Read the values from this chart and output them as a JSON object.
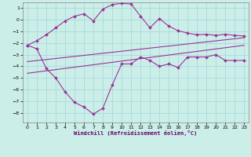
{
  "xlabel": "Windchill (Refroidissement éolien,°C)",
  "bg_color": "#cceee8",
  "grid_color": "#aadddd",
  "line_color": "#993399",
  "xlim": [
    -0.5,
    23.5
  ],
  "ylim": [
    -8.8,
    1.5
  ],
  "xticks": [
    0,
    1,
    2,
    3,
    4,
    5,
    6,
    7,
    8,
    9,
    10,
    11,
    12,
    13,
    14,
    15,
    16,
    17,
    18,
    19,
    20,
    21,
    22,
    23
  ],
  "yticks": [
    -8,
    -7,
    -6,
    -5,
    -4,
    -3,
    -2,
    -1,
    0,
    1
  ],
  "curve_up_x": [
    0,
    1,
    2,
    3,
    4,
    5,
    6,
    7,
    8,
    9,
    10,
    11,
    12,
    13,
    14,
    15,
    16,
    17,
    18,
    19,
    20,
    21,
    22,
    23
  ],
  "curve_up_y": [
    -2.2,
    -1.8,
    -1.3,
    -0.7,
    -0.1,
    0.3,
    0.5,
    -0.1,
    0.9,
    1.3,
    1.4,
    1.35,
    0.3,
    -0.7,
    0.1,
    -0.55,
    -0.95,
    -1.15,
    -1.3,
    -1.25,
    -1.35,
    -1.25,
    -1.35,
    -1.4
  ],
  "curve_down_x": [
    0,
    1,
    2,
    3,
    4,
    5,
    6,
    7,
    8,
    9,
    10,
    11,
    12,
    13,
    14,
    15,
    16,
    17,
    18,
    19,
    20,
    21,
    22,
    23
  ],
  "curve_down_y": [
    -2.2,
    -2.5,
    -4.2,
    -5.0,
    -6.2,
    -7.1,
    -7.5,
    -8.1,
    -7.6,
    -5.6,
    -3.8,
    -3.8,
    -3.2,
    -3.5,
    -4.0,
    -3.8,
    -4.1,
    -3.2,
    -3.2,
    -3.2,
    -3.0,
    -3.5,
    -3.5,
    -3.5
  ],
  "line1_x": [
    0,
    23
  ],
  "line1_y": [
    -3.6,
    -1.55
  ],
  "line2_x": [
    0,
    23
  ],
  "line2_y": [
    -4.6,
    -2.2
  ]
}
